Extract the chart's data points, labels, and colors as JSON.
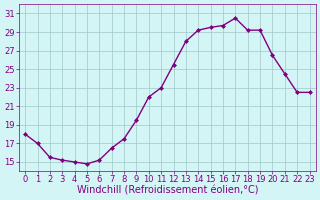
{
  "x": [
    0,
    1,
    2,
    3,
    4,
    5,
    6,
    7,
    8,
    9,
    10,
    11,
    12,
    13,
    14,
    15,
    16,
    17,
    18,
    19,
    20,
    21,
    22,
    23
  ],
  "y": [
    18.0,
    17.0,
    15.5,
    15.2,
    15.0,
    14.8,
    15.2,
    16.5,
    17.5,
    19.5,
    22.0,
    23.0,
    25.5,
    28.0,
    29.2,
    29.5,
    29.7,
    30.5,
    29.2,
    29.2,
    26.5,
    24.5,
    22.5,
    22.5
  ],
  "line_color": "#800080",
  "marker": "D",
  "markersize": 2.0,
  "linewidth": 1.0,
  "bg_color": "#d4f5f5",
  "grid_color": "#a0c8c8",
  "xlabel": "Windchill (Refroidissement éolien,°C)",
  "xlabel_fontsize": 7,
  "yticks": [
    15,
    17,
    19,
    21,
    23,
    25,
    27,
    29,
    31
  ],
  "xticks": [
    0,
    1,
    2,
    3,
    4,
    5,
    6,
    7,
    8,
    9,
    10,
    11,
    12,
    13,
    14,
    15,
    16,
    17,
    18,
    19,
    20,
    21,
    22,
    23
  ],
  "ylim": [
    14.0,
    32.0
  ],
  "xlim": [
    -0.5,
    23.5
  ],
  "tick_fontsize": 6,
  "tick_color": "#800080",
  "spine_color": "#800080"
}
